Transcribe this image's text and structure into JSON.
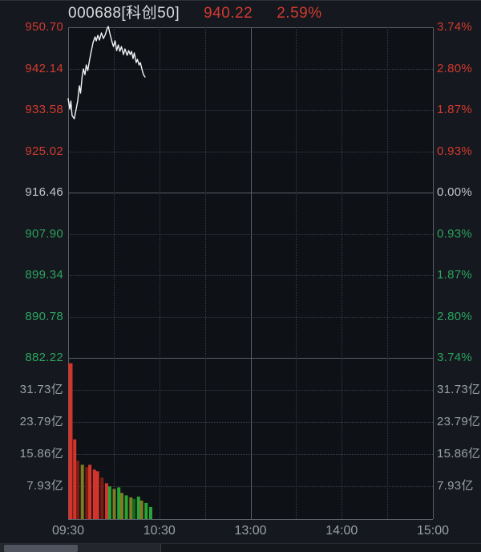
{
  "header": {
    "symbol": "000688[科创50]",
    "price": "940.22",
    "change_pct": "2.59%"
  },
  "colors": {
    "up": "#d23a30",
    "down": "#2ba45f",
    "flat": "#c2c5ca",
    "line": "#f2f3f5",
    "bar_red": "#d5342b",
    "bar_dark_red": "#7c1d14",
    "bar_olive": "#7c7c24",
    "bar_green": "#2aa336",
    "bar_dark_green": "#17691f",
    "grid_dotted": "#3a3e45",
    "grid_solid": "#5b5f67",
    "background": "#15181e",
    "plot_background": "#0e1116"
  },
  "left_price_labels": [
    {
      "text": "950.70",
      "tone": "up"
    },
    {
      "text": "942.14",
      "tone": "up"
    },
    {
      "text": "933.58",
      "tone": "up"
    },
    {
      "text": "925.02",
      "tone": "up"
    },
    {
      "text": "916.46",
      "tone": "flat"
    },
    {
      "text": "907.90",
      "tone": "down"
    },
    {
      "text": "899.34",
      "tone": "down"
    },
    {
      "text": "890.78",
      "tone": "down"
    },
    {
      "text": "882.22",
      "tone": "down"
    }
  ],
  "right_pct_labels": [
    {
      "text": "3.74%",
      "tone": "up"
    },
    {
      "text": "2.80%",
      "tone": "up"
    },
    {
      "text": "1.87%",
      "tone": "up"
    },
    {
      "text": "0.93%",
      "tone": "up"
    },
    {
      "text": "0.00%",
      "tone": "flat"
    },
    {
      "text": "0.93%",
      "tone": "down"
    },
    {
      "text": "1.87%",
      "tone": "down"
    },
    {
      "text": "2.80%",
      "tone": "down"
    },
    {
      "text": "3.74%",
      "tone": "down"
    }
  ],
  "volume_labels": [
    "31.73亿",
    "23.79亿",
    "15.86亿",
    "7.93亿"
  ],
  "time_labels": [
    "09:30",
    "10:30",
    "13:00",
    "14:00",
    "15:00"
  ],
  "chart_data": {
    "type": "line+bar",
    "title": "000688 科创50 intraday (分时)",
    "last_price": 940.22,
    "change_pct": 2.59,
    "prev_close": 916.46,
    "time_axis": {
      "labels": [
        "09:30",
        "10:30",
        "13:00",
        "14:00",
        "15:00"
      ],
      "session_minutes": 240,
      "midday_break_minute": 120
    },
    "price_axis": {
      "min": 882.22,
      "max": 950.7,
      "ticks": [
        950.7,
        942.14,
        933.58,
        925.02,
        916.46,
        907.9,
        899.34,
        890.78,
        882.22
      ]
    },
    "pct_axis": {
      "min": -3.74,
      "max": 3.74,
      "ticks": [
        3.74,
        2.8,
        1.87,
        0.93,
        0.0,
        -0.93,
        -1.87,
        -2.8,
        -3.74
      ]
    },
    "volume_axis": {
      "unit": "亿",
      "max": 39.65,
      "ticks": [
        31.73,
        23.79,
        15.86,
        7.93
      ]
    },
    "price_line": {
      "t_min": [
        0,
        1.1,
        1.8,
        2.6,
        4,
        5.3,
        6.3,
        7.4,
        8.2,
        9.2,
        10,
        11.1,
        11.9,
        12.9,
        14,
        15,
        16.4,
        17.7,
        18.5,
        19.5,
        20.6,
        21.9,
        23.2,
        24.5,
        25.6,
        26.4,
        27.4,
        28.7,
        29.8,
        30.9,
        31.9,
        33,
        34,
        35.1,
        36.4,
        37.4,
        38.8,
        39.8,
        40.9,
        41.7,
        42.7,
        43.5,
        44.8,
        45.6,
        46.7,
        47.5,
        48.8,
        49.6,
        50.6
      ],
      "price": [
        935.91,
        933.75,
        935.41,
        932.42,
        931.75,
        933.75,
        935.41,
        938.57,
        937.07,
        940.4,
        942.06,
        940.89,
        942.89,
        941.73,
        943.72,
        945.38,
        947.54,
        948.71,
        947.87,
        949.04,
        948.04,
        949.54,
        948.37,
        949.2,
        950.37,
        950.87,
        949.54,
        947.87,
        946.71,
        947.87,
        945.88,
        947.04,
        945.71,
        946.71,
        945.05,
        946.21,
        944.88,
        945.88,
        945.05,
        945.71,
        944.22,
        945.38,
        943.39,
        944.05,
        942.89,
        943.39,
        941.73,
        940.89,
        940.4
      ]
    },
    "volume_bars": [
      {
        "t": 0,
        "v": 38.7,
        "tone": "red"
      },
      {
        "t": 3,
        "v": 19.8,
        "tone": "red"
      },
      {
        "t": 5,
        "v": 14.5,
        "tone": "dark_red"
      },
      {
        "t": 8,
        "v": 13.5,
        "tone": "olive"
      },
      {
        "t": 11,
        "v": 12.9,
        "tone": "dark_red"
      },
      {
        "t": 13,
        "v": 13.5,
        "tone": "red"
      },
      {
        "t": 16,
        "v": 12.3,
        "tone": "red"
      },
      {
        "t": 18,
        "v": 11.9,
        "tone": "red"
      },
      {
        "t": 21,
        "v": 10.3,
        "tone": "dark_red"
      },
      {
        "t": 24,
        "v": 8.9,
        "tone": "red"
      },
      {
        "t": 26,
        "v": 8.1,
        "tone": "green"
      },
      {
        "t": 29,
        "v": 7.5,
        "tone": "olive"
      },
      {
        "t": 32,
        "v": 7.9,
        "tone": "green"
      },
      {
        "t": 34,
        "v": 6.5,
        "tone": "olive"
      },
      {
        "t": 37,
        "v": 5.9,
        "tone": "green"
      },
      {
        "t": 40,
        "v": 5.4,
        "tone": "olive"
      },
      {
        "t": 42,
        "v": 5.0,
        "tone": "dark_green"
      },
      {
        "t": 45,
        "v": 5.6,
        "tone": "green"
      },
      {
        "t": 47,
        "v": 4.6,
        "tone": "olive"
      },
      {
        "t": 50,
        "v": 4.0,
        "tone": "green"
      },
      {
        "t": 53,
        "v": 3.0,
        "tone": "green"
      }
    ]
  }
}
